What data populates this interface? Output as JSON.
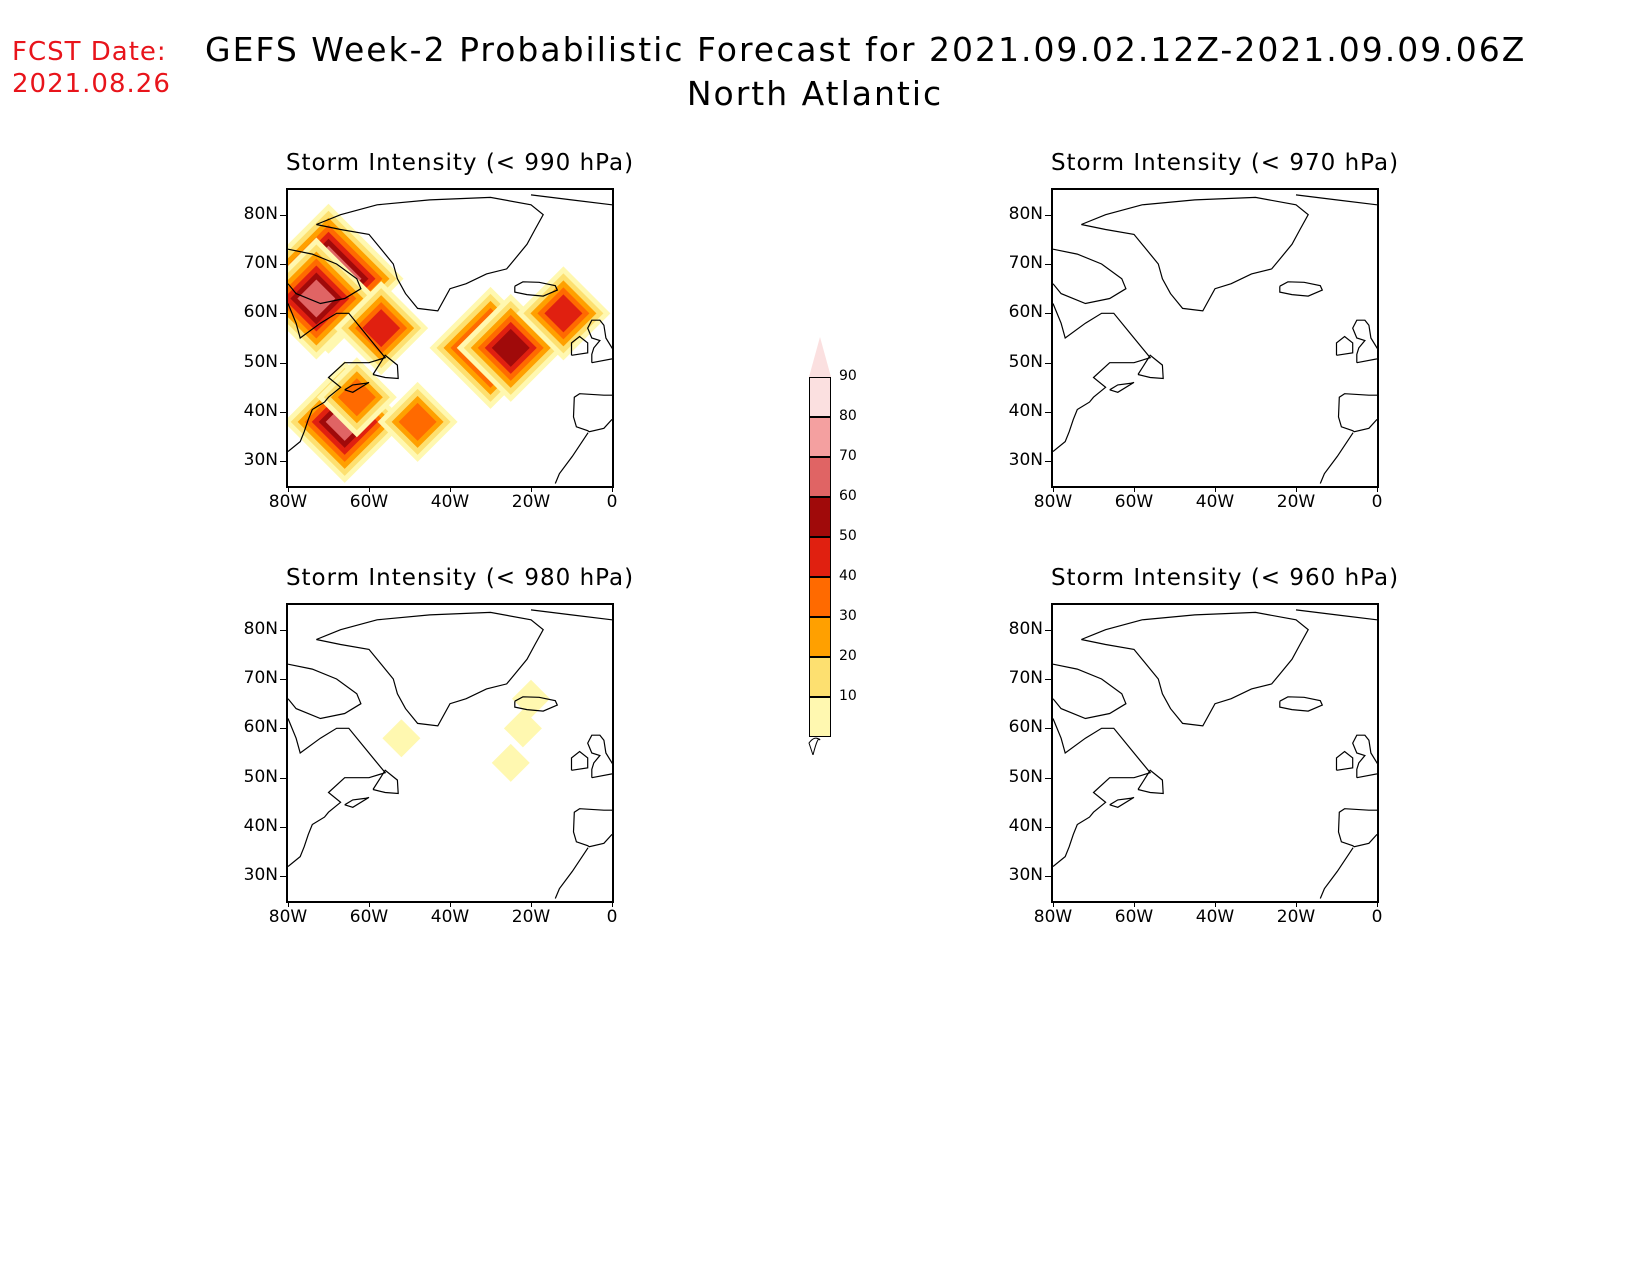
{
  "header": {
    "fcst_label": "FCST Date:",
    "fcst_date": "2021.08.26",
    "title": "GEFS Week-2 Probabilistic Forecast for 2021.09.02.12Z-2021.09.09.06Z",
    "region": "North Atlantic"
  },
  "axes": {
    "lat_labels": [
      "80N",
      "70N",
      "60N",
      "50N",
      "40N",
      "30N"
    ],
    "lon_labels": [
      "80W",
      "60W",
      "40W",
      "20W",
      "0"
    ]
  },
  "panels": [
    {
      "id": "p990",
      "title": "Storm Intensity (< 990 hPa)"
    },
    {
      "id": "p970",
      "title": "Storm Intensity (< 970 hPa)"
    },
    {
      "id": "p980",
      "title": "Storm Intensity (< 980 hPa)"
    },
    {
      "id": "p960",
      "title": "Storm Intensity (< 960 hPa)"
    }
  ],
  "colorbar": {
    "levels": [
      "90",
      "80",
      "70",
      "60",
      "50",
      "40",
      "30",
      "20",
      "10"
    ],
    "colors": [
      "#fbe0e0",
      "#f4a0a0",
      "#e06464",
      "#a00a0a",
      "#e02010",
      "#ff6a00",
      "#ffa000",
      "#fde070",
      "#fff8b0"
    ]
  },
  "chart_data": {
    "type": "heatmap",
    "units": "probability (%)",
    "levels": [
      10,
      20,
      30,
      40,
      50,
      60,
      70,
      80,
      90
    ],
    "extent": {
      "lon": [
        -80,
        0
      ],
      "lat": [
        25,
        85
      ]
    },
    "panels": [
      {
        "title": "Storm Intensity (< 990 hPa)",
        "hotspots": [
          {
            "lon": -70,
            "lat": 67,
            "value": 90
          },
          {
            "lon": -73,
            "lat": 63,
            "value": 70
          },
          {
            "lon": -66,
            "lat": 38,
            "value": 70
          },
          {
            "lon": -30,
            "lat": 53,
            "value": 70
          },
          {
            "lon": -25,
            "lat": 53,
            "value": 60
          },
          {
            "lon": -12,
            "lat": 60,
            "value": 55
          },
          {
            "lon": -57,
            "lat": 57,
            "value": 50
          },
          {
            "lon": -63,
            "lat": 43,
            "value": 40
          },
          {
            "lon": -48,
            "lat": 38,
            "value": 40
          }
        ]
      },
      {
        "title": "Storm Intensity (< 970 hPa)",
        "hotspots": []
      },
      {
        "title": "Storm Intensity (< 980 hPa)",
        "hotspots": [
          {
            "lon": -22,
            "lat": 60,
            "value": 15
          },
          {
            "lon": -25,
            "lat": 53,
            "value": 15
          },
          {
            "lon": -52,
            "lat": 58,
            "value": 12
          },
          {
            "lon": -20,
            "lat": 66,
            "value": 12
          }
        ]
      },
      {
        "title": "Storm Intensity (< 960 hPa)",
        "hotspots": []
      }
    ]
  }
}
